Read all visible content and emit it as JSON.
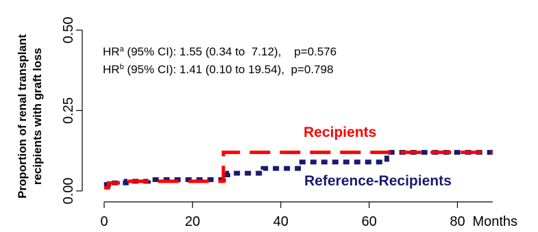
{
  "chart_data": {
    "type": "line",
    "subtype": "step (cumulative incidence)",
    "ylabel_line1": "Proportion of renal transplant",
    "ylabel_line2": "recipients with graft loss",
    "xlabel": "Months",
    "xlim": [
      0,
      88
    ],
    "ylim": [
      0,
      0.5
    ],
    "x_ticks": [
      0,
      20,
      40,
      60,
      80
    ],
    "x_tick_labels": [
      "0",
      "20",
      "40",
      "60",
      "80"
    ],
    "y_ticks": [
      0,
      0.25,
      0.5
    ],
    "y_tick_labels": [
      "0.00",
      "0.25",
      "0.50"
    ],
    "grid": false,
    "annotations": {
      "hr_a": {
        "prefix": "HR",
        "sup": "a",
        "text": " (95% CI): 1.55 (0.34 to  7.12),    p=0.576"
      },
      "hr_b": {
        "prefix": "HR",
        "sup": "b",
        "text": " (95% CI): 1.41 (0.10 to 19.54),  p=0.798"
      }
    },
    "series": [
      {
        "name": "Recipients",
        "color": "#ff0000",
        "line_style": "dashed",
        "x": [
          0,
          1,
          5,
          27,
          88
        ],
        "y": [
          0.01,
          0.025,
          0.03,
          0.12,
          0.12
        ]
      },
      {
        "name": "Reference-Recipients",
        "color": "#1a1a6e",
        "line_style": "dotted",
        "x": [
          0,
          0.5,
          1,
          5,
          10,
          20,
          27,
          28,
          36,
          44,
          62,
          64,
          88
        ],
        "y": [
          0.015,
          0.02,
          0.025,
          0.03,
          0.035,
          0.035,
          0.05,
          0.055,
          0.07,
          0.09,
          0.09,
          0.12,
          0.12
        ]
      }
    ]
  }
}
